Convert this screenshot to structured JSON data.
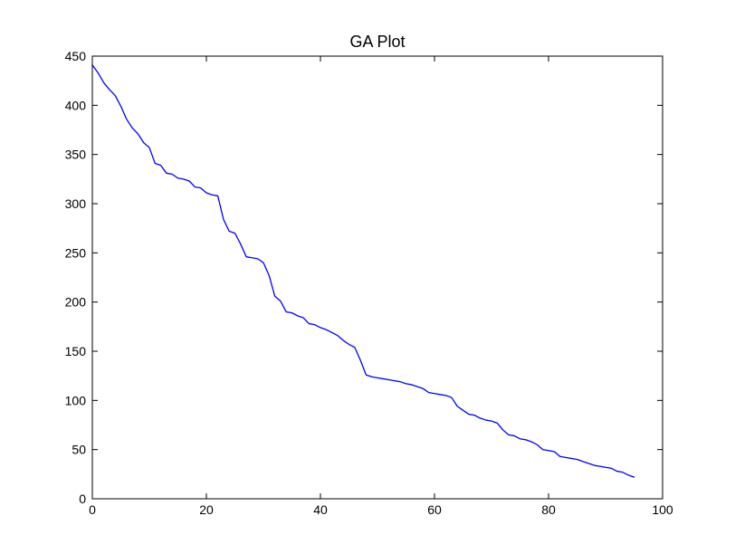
{
  "chart_data": {
    "type": "line",
    "title": "GA Plot",
    "xlabel": "",
    "ylabel": "",
    "xlim": [
      0,
      100
    ],
    "ylim": [
      0,
      450
    ],
    "x_ticks": [
      0,
      20,
      40,
      60,
      80,
      100
    ],
    "y_ticks": [
      0,
      50,
      100,
      150,
      200,
      250,
      300,
      350,
      400,
      450
    ],
    "grid": false,
    "legend": "none",
    "series": [
      {
        "color": "#0000ff",
        "x": [
          0,
          1,
          2,
          3,
          4,
          5,
          6,
          7,
          8,
          9,
          10,
          11,
          12,
          13,
          14,
          15,
          16,
          17,
          18,
          19,
          20,
          21,
          22,
          23,
          24,
          25,
          26,
          27,
          28,
          29,
          30,
          31,
          32,
          33,
          34,
          35,
          36,
          37,
          38,
          39,
          40,
          41,
          42,
          43,
          44,
          45,
          46,
          47,
          48,
          49,
          50,
          51,
          52,
          53,
          54,
          55,
          56,
          57,
          58,
          59,
          60,
          61,
          62,
          63,
          64,
          65,
          66,
          67,
          68,
          69,
          70,
          71,
          72,
          73,
          74,
          75,
          76,
          77,
          78,
          79,
          80,
          81,
          82,
          83,
          84,
          85,
          86,
          87,
          88,
          89,
          90,
          91,
          92,
          93,
          94,
          95
        ],
        "y": [
          441,
          433,
          423,
          416,
          410,
          399,
          386,
          377,
          371,
          362,
          357,
          341,
          339,
          331,
          330,
          326,
          325,
          323,
          317,
          316,
          311,
          309,
          308,
          284,
          272,
          270,
          259,
          246,
          245,
          244,
          240,
          227,
          206,
          201,
          190,
          189,
          186,
          184,
          178,
          177,
          174,
          172,
          169,
          166,
          161,
          157,
          154,
          141,
          126,
          124,
          123,
          122,
          121,
          120,
          119,
          117,
          116,
          114,
          112,
          108,
          107,
          106,
          105,
          103,
          94,
          90,
          86,
          85,
          82,
          80,
          79,
          77,
          70,
          65,
          64,
          61,
          60,
          58,
          55,
          50,
          49,
          48,
          43,
          42,
          41,
          40,
          38,
          36,
          34,
          33,
          32,
          31,
          28,
          27,
          24,
          22
        ]
      }
    ]
  }
}
